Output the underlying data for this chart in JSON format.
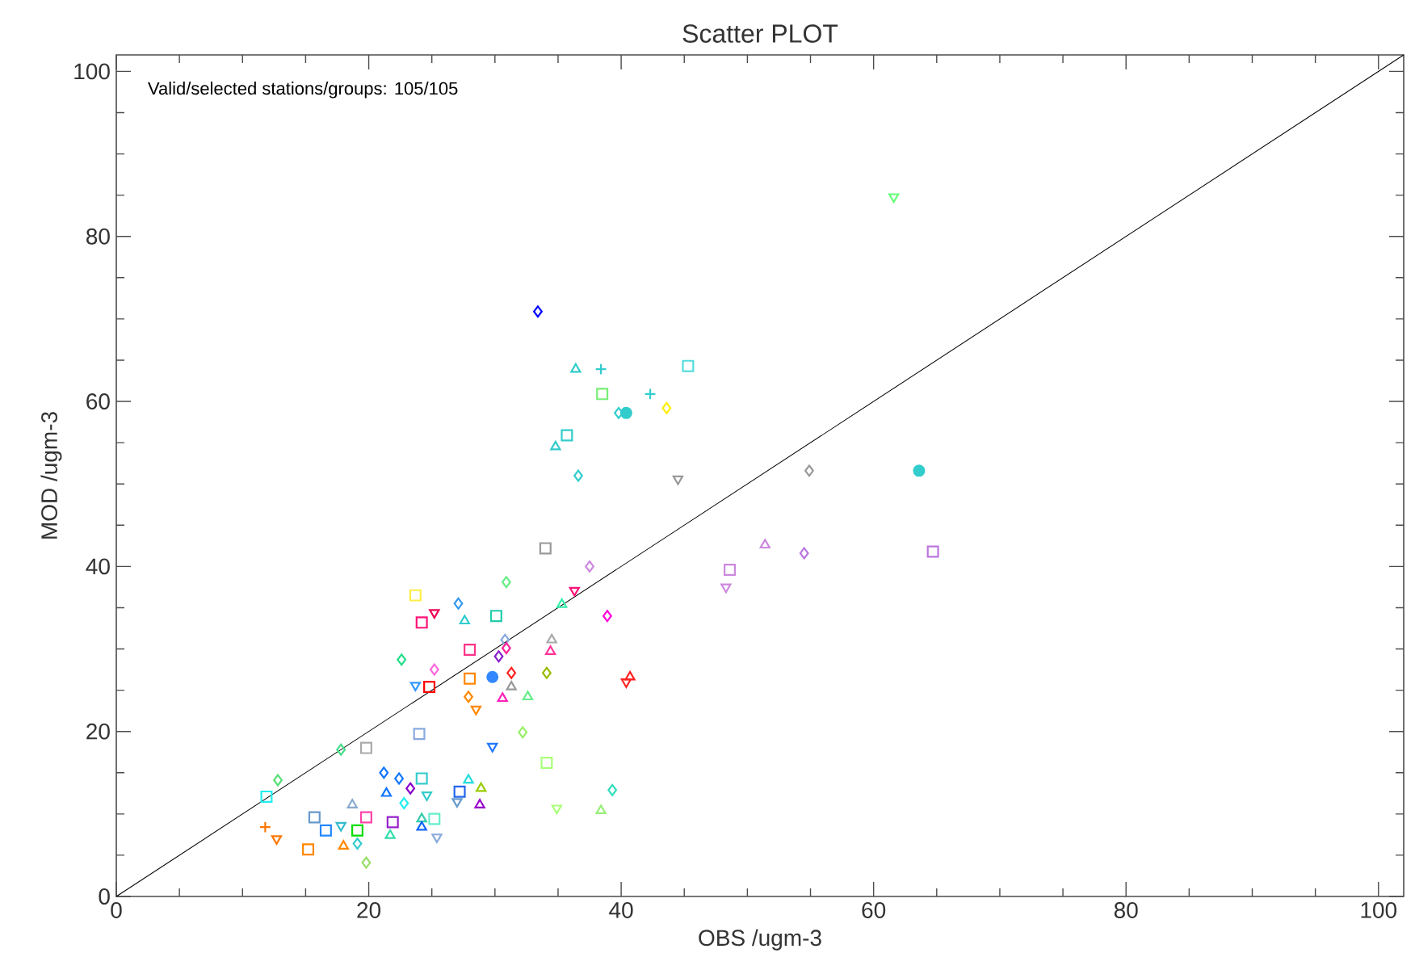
{
  "chart_data": {
    "type": "scatter",
    "title": "Scatter PLOT",
    "xlabel": "OBS /ugm-3",
    "ylabel": "MOD /ugm-3",
    "annotations": [
      "Valid/selected stations/groups: 105/105"
    ],
    "xlim": [
      0,
      102
    ],
    "ylim": [
      0,
      102
    ],
    "xticks": [
      0,
      20,
      40,
      60,
      80,
      100
    ],
    "yticks": [
      0,
      20,
      40,
      60,
      80,
      100
    ],
    "series": [
      {
        "type": "line",
        "x": [
          0,
          102
        ],
        "values": [
          0,
          102
        ],
        "color": "#000000",
        "marker": "none"
      },
      {
        "marker": "square",
        "x": [
          24.8,
          28.0,
          24.0,
          34.1,
          19.8,
          11.9,
          15.2,
          24.2,
          15.7,
          16.6,
          19.1,
          19.8,
          21.9,
          25.2,
          27.2,
          34.0,
          23.7,
          24.2,
          30.1,
          28.0,
          45.3,
          38.5,
          35.7,
          64.7,
          48.6
        ],
        "values": [
          25.4,
          26.4,
          19.7,
          16.2,
          18.0,
          12.1,
          5.7,
          14.3,
          9.6,
          8.0,
          8.0,
          9.6,
          9.0,
          9.4,
          12.7,
          42.2,
          36.5,
          33.2,
          34.0,
          29.9,
          64.3,
          60.9,
          55.9,
          41.8,
          39.6
        ],
        "colors": [
          "#ff0000",
          "#ff8800",
          "#88aadd",
          "#aaff77",
          "#aaaaaa",
          "#22eeee",
          "#ff8800",
          "#33cccc",
          "#6699cc",
          "#2288ff",
          "#00dd00",
          "#ff44aa",
          "#9922cc",
          "#66eecc",
          "#2266ee",
          "#999999",
          "#ffee44",
          "#ff1177",
          "#22ccaa",
          "#ff3388",
          "#55dddd",
          "#77ee77",
          "#33cccc",
          "#bb77dd",
          "#cc88dd"
        ]
      },
      {
        "marker": "triangle",
        "x": [
          31.3,
          30.6,
          32.6,
          21.4,
          18.7,
          18.0,
          21.7,
          24.2,
          24.2,
          27.9,
          28.9,
          28.8,
          38.4,
          27.6,
          35.3,
          34.5,
          34.4,
          40.7,
          36.4,
          34.8,
          51.4
        ],
        "values": [
          25.4,
          24.0,
          24.2,
          12.5,
          11.1,
          6.1,
          7.4,
          9.4,
          8.4,
          14.1,
          13.1,
          11.1,
          10.4,
          33.4,
          35.4,
          31.1,
          29.7,
          26.6,
          63.9,
          54.5,
          42.6
        ],
        "colors": [
          "#999999",
          "#ff22bb",
          "#66ee88",
          "#1177ff",
          "#88aacc",
          "#ff8800",
          "#33ddaa",
          "#33ccaa",
          "#1166ff",
          "#22dddd",
          "#99cc00",
          "#9900cc",
          "#99ee77",
          "#33cccc",
          "#33eeaa",
          "#aaaaaa",
          "#ff3399",
          "#ff2222",
          "#33cccc",
          "#33cccc",
          "#cc88dd"
        ]
      },
      {
        "marker": "triangle_down",
        "x": [
          28.5,
          23.7,
          29.8,
          12.7,
          24.6,
          17.8,
          25.4,
          27.0,
          34.9,
          25.2,
          36.3,
          40.4,
          44.5,
          61.6,
          48.3
        ],
        "values": [
          22.7,
          25.6,
          18.2,
          7.0,
          12.3,
          8.6,
          7.2,
          11.5,
          10.7,
          34.4,
          37.1,
          26.0,
          50.6,
          84.8,
          37.5
        ],
        "colors": [
          "#ff8800",
          "#3399ff",
          "#2277ff",
          "#ff7700",
          "#33cccc",
          "#33bbcc",
          "#88aadd",
          "#6699cc",
          "#aaff77",
          "#ee0055",
          "#ff1177",
          "#ff2222",
          "#999999",
          "#66ff77",
          "#cc88dd"
        ]
      },
      {
        "marker": "diamond",
        "x": [
          27.9,
          32.2,
          17.8,
          12.8,
          21.2,
          22.4,
          23.3,
          22.8,
          19.1,
          19.8,
          39.3,
          37.5,
          30.9,
          27.1,
          38.9,
          30.8,
          30.9,
          30.3,
          22.6,
          25.2,
          31.3,
          34.1,
          33.4,
          43.6,
          39.8,
          36.6,
          54.9,
          54.5
        ],
        "values": [
          24.2,
          19.9,
          17.8,
          14.1,
          15.0,
          14.3,
          13.1,
          11.3,
          6.4,
          4.1,
          12.9,
          40.0,
          38.1,
          35.5,
          34.0,
          31.1,
          30.1,
          29.1,
          28.7,
          27.5,
          27.1,
          27.1,
          70.9,
          59.2,
          58.6,
          51.0,
          51.6,
          41.6
        ],
        "colors": [
          "#ff8800",
          "#99ee66",
          "#44dd88",
          "#55dd77",
          "#1177ff",
          "#1177ff",
          "#8800cc",
          "#22eeee",
          "#33cccc",
          "#99dd66",
          "#33ddbb",
          "#cc88dd",
          "#66ee88",
          "#3399ee",
          "#ff00dd",
          "#88aadd",
          "#ff2299",
          "#8822cc",
          "#22dd88",
          "#ff66dd",
          "#ff2222",
          "#99bb00",
          "#0000ff",
          "#ffee00",
          "#33cccc",
          "#33cccc",
          "#999999",
          "#bb77dd"
        ]
      },
      {
        "marker": "cross",
        "x": [
          11.8,
          38.4
        ],
        "values": [
          8.4,
          63.9
        ],
        "colors": [
          "#ff7700",
          "#33cccc"
        ]
      },
      {
        "marker": "cross",
        "x": [
          42.3
        ],
        "values": [
          60.9
        ],
        "colors": [
          "#33cccc"
        ]
      },
      {
        "marker": "circle",
        "x": [
          29.8,
          40.4,
          63.6
        ],
        "values": [
          26.6,
          58.6,
          51.6
        ],
        "colors": [
          "#3388ff",
          "#33cccc",
          "#33cccc"
        ]
      }
    ]
  }
}
